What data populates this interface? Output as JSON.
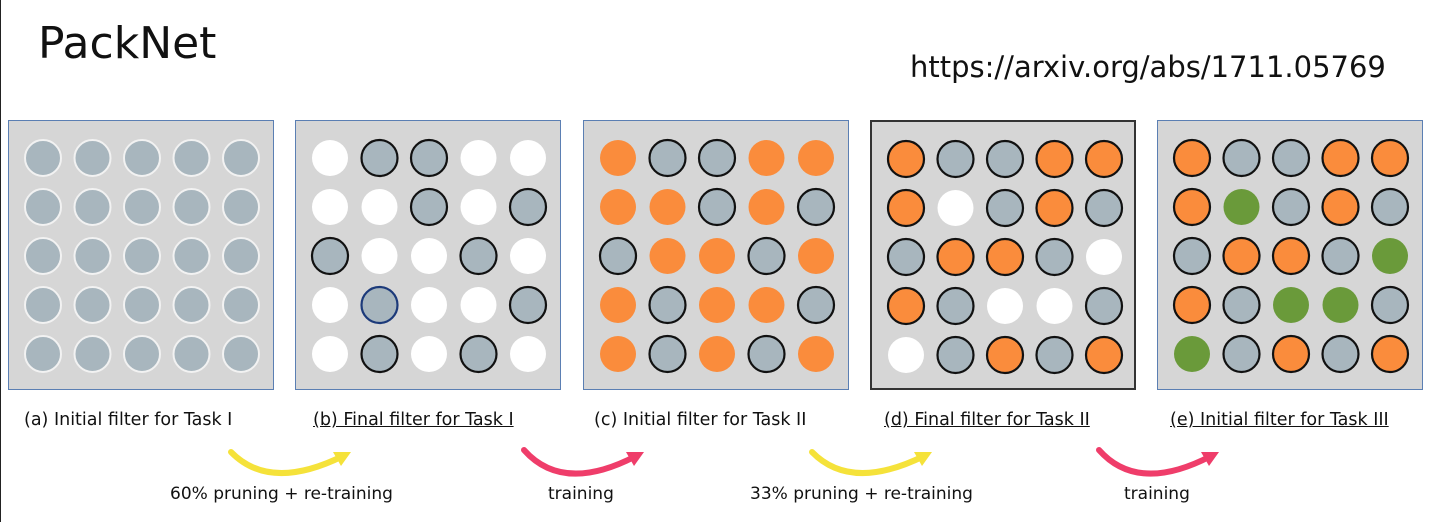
{
  "header": {
    "title": "PackNet",
    "url": "https://arxiv.org/abs/1711.05769"
  },
  "colors": {
    "unused": "#a8b6be",
    "pruned": "#ffffff",
    "task1": "#fa8c3c",
    "task2": "#6a9a3a",
    "panel_bg": "#d6d6d6",
    "arrow_yellow": "#f5e23a",
    "arrow_red": "#ef3d6a"
  },
  "legend_codes": {
    "G": "free weight (outlined)",
    "W": "pruned / released",
    "O": "fixed for Task I",
    "N": "new for Task III",
    "g": "unassigned initial"
  },
  "panels": [
    {
      "caption": "(a) Initial filter for Task I",
      "underline": false,
      "dark_border": false,
      "grid": [
        [
          "g",
          "g",
          "g",
          "g",
          "g"
        ],
        [
          "g",
          "g",
          "g",
          "g",
          "g"
        ],
        [
          "g",
          "g",
          "g",
          "g",
          "g"
        ],
        [
          "g",
          "g",
          "g",
          "g",
          "g"
        ],
        [
          "g",
          "g",
          "g",
          "g",
          "g"
        ]
      ]
    },
    {
      "caption": "(b) Final filter for Task I",
      "underline": true,
      "dark_border": false,
      "grid": [
        [
          "W",
          "G",
          "G",
          "W",
          "W"
        ],
        [
          "W",
          "W",
          "G",
          "W",
          "G"
        ],
        [
          "G",
          "W",
          "W",
          "G",
          "W"
        ],
        [
          "W",
          "B",
          "W",
          "W",
          "G"
        ],
        [
          "W",
          "G",
          "W",
          "G",
          "W"
        ]
      ]
    },
    {
      "caption": "(c) Initial filter for Task II",
      "underline": false,
      "dark_border": false,
      "grid": [
        [
          "O",
          "G",
          "G",
          "O",
          "O"
        ],
        [
          "O",
          "O",
          "G",
          "O",
          "G"
        ],
        [
          "G",
          "O",
          "O",
          "G",
          "O"
        ],
        [
          "O",
          "G",
          "O",
          "O",
          "G"
        ],
        [
          "O",
          "G",
          "O",
          "G",
          "O"
        ]
      ]
    },
    {
      "caption": "(d) Final filter for Task II",
      "underline": true,
      "dark_border": true,
      "grid": [
        [
          "Ok",
          "G",
          "G",
          "Ok",
          "Ok"
        ],
        [
          "Ok",
          "W",
          "G",
          "Ok",
          "G"
        ],
        [
          "G",
          "Ok",
          "Ok",
          "G",
          "W"
        ],
        [
          "Ok",
          "G",
          "W",
          "W",
          "G"
        ],
        [
          "W",
          "G",
          "Ok",
          "G",
          "Ok"
        ]
      ]
    },
    {
      "caption": "(e) Initial filter for Task III",
      "underline": true,
      "dark_border": false,
      "grid": [
        [
          "Ok",
          "G",
          "G",
          "Ok",
          "Ok"
        ],
        [
          "Ok",
          "N",
          "G",
          "Ok",
          "G"
        ],
        [
          "G",
          "Ok",
          "Ok",
          "G",
          "N"
        ],
        [
          "Ok",
          "G",
          "N",
          "N",
          "G"
        ],
        [
          "N",
          "G",
          "Ok",
          "G",
          "Ok"
        ]
      ]
    }
  ],
  "transitions": [
    {
      "label": "60% pruning + re-training",
      "color": "yellow"
    },
    {
      "label": "training",
      "color": "red"
    },
    {
      "label": "33% pruning + re-training",
      "color": "yellow"
    },
    {
      "label": "training",
      "color": "red"
    }
  ]
}
